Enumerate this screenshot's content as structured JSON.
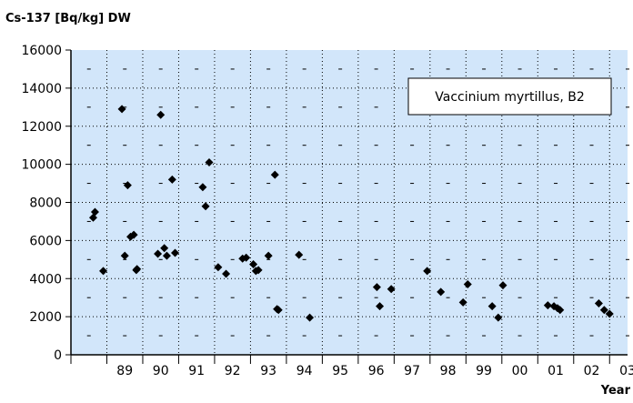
{
  "chart_data": {
    "type": "scatter",
    "title": "",
    "ylabel": "Cs-137 [Bq/kg] DW",
    "xlabel": "Year",
    "annotation": "Vaccinium myrtillus, B2",
    "ylim": [
      0,
      16000
    ],
    "yticks": [
      0,
      2000,
      4000,
      6000,
      8000,
      10000,
      12000,
      14000,
      16000
    ],
    "xlim": [
      1988.0,
      2003.5
    ],
    "xtick_labels": [
      "89",
      "90",
      "91",
      "92",
      "93",
      "94",
      "95",
      "96",
      "97",
      "98",
      "99",
      "00",
      "01",
      "02",
      "03"
    ],
    "xtick_years": [
      1989,
      1990,
      1991,
      1992,
      1993,
      1994,
      1995,
      1996,
      1997,
      1998,
      1999,
      2000,
      2001,
      2002,
      2003
    ],
    "grid": true,
    "legend_placement": "top-right",
    "colors": {
      "plot_background": "#d2e6fa",
      "marker": "#000000",
      "grid": "#000000",
      "legend_background": "#ffffff"
    },
    "series": [
      {
        "points": [
          [
            1988.62,
            7200
          ],
          [
            1988.67,
            7500
          ],
          [
            1988.9,
            4400
          ],
          [
            1989.42,
            12900
          ],
          [
            1989.5,
            5200
          ],
          [
            1989.58,
            8900
          ],
          [
            1989.66,
            6200
          ],
          [
            1989.75,
            6300
          ],
          [
            1989.82,
            4450
          ],
          [
            1989.84,
            4500
          ],
          [
            1990.42,
            5300
          ],
          [
            1990.5,
            12600
          ],
          [
            1990.6,
            5600
          ],
          [
            1990.67,
            5200
          ],
          [
            1990.82,
            9200
          ],
          [
            1990.9,
            5350
          ],
          [
            1991.67,
            8800
          ],
          [
            1991.75,
            7800
          ],
          [
            1991.85,
            10100
          ],
          [
            1992.1,
            4600
          ],
          [
            1992.32,
            4250
          ],
          [
            1992.78,
            5050
          ],
          [
            1992.88,
            5100
          ],
          [
            1993.08,
            4750
          ],
          [
            1993.15,
            4400
          ],
          [
            1993.22,
            4450
          ],
          [
            1993.5,
            5200
          ],
          [
            1993.68,
            9450
          ],
          [
            1993.74,
            2400
          ],
          [
            1993.78,
            2350
          ],
          [
            1994.35,
            5250
          ],
          [
            1994.65,
            1950
          ],
          [
            1996.52,
            3550
          ],
          [
            1996.6,
            2550
          ],
          [
            1996.92,
            3450
          ],
          [
            1997.92,
            4400
          ],
          [
            1998.3,
            3300
          ],
          [
            1998.92,
            2750
          ],
          [
            1999.05,
            3700
          ],
          [
            1999.73,
            2550
          ],
          [
            1999.9,
            1950
          ],
          [
            2000.03,
            3650
          ],
          [
            2001.28,
            2600
          ],
          [
            2001.45,
            2550
          ],
          [
            2001.55,
            2450
          ],
          [
            2001.62,
            2350
          ],
          [
            2002.7,
            2700
          ],
          [
            2002.85,
            2350
          ],
          [
            2003.0,
            2150
          ]
        ]
      }
    ]
  }
}
